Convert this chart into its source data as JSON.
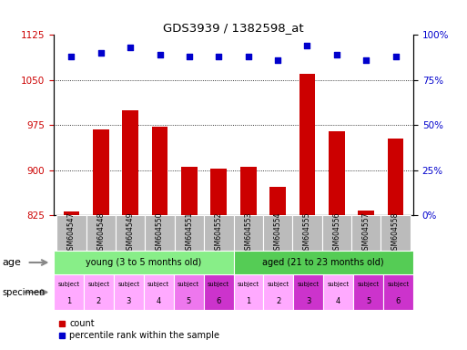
{
  "title": "GDS3939 / 1382598_at",
  "samples": [
    "GSM604547",
    "GSM604548",
    "GSM604549",
    "GSM604550",
    "GSM604551",
    "GSM604552",
    "GSM604553",
    "GSM604554",
    "GSM604555",
    "GSM604556",
    "GSM604557",
    "GSM604558"
  ],
  "bar_values": [
    831,
    968,
    1000,
    972,
    905,
    902,
    905,
    873,
    1060,
    965,
    833,
    952
  ],
  "bar_bottom": 825,
  "bar_color": "#cc0000",
  "dot_values": [
    88,
    90,
    93,
    89,
    88,
    88,
    88,
    86,
    94,
    89,
    86,
    88
  ],
  "dot_color": "#0000cc",
  "ylim_left": [
    825,
    1125
  ],
  "ylim_right": [
    0,
    100
  ],
  "yticks_left": [
    825,
    900,
    975,
    1050,
    1125
  ],
  "yticks_right": [
    0,
    25,
    50,
    75,
    100
  ],
  "grid_values": [
    900,
    975,
    1050
  ],
  "age_young_label": "young (3 to 5 months old)",
  "age_aged_label": "aged (21 to 23 months old)",
  "age_young_color": "#88ee88",
  "age_aged_color": "#55cc55",
  "specimen_colors": [
    "#ffaaff",
    "#ffaaff",
    "#ffaaff",
    "#ffaaff",
    "#ee77ee",
    "#cc33cc",
    "#ffaaff",
    "#ffaaff",
    "#cc33cc",
    "#ffaaff",
    "#cc33cc",
    "#cc33cc"
  ],
  "left_label_color": "#cc0000",
  "right_label_color": "#0000cc",
  "gsm_bg_color": "#bbbbbb",
  "age_label_color": "#000000",
  "specimen_label_color": "#000000"
}
